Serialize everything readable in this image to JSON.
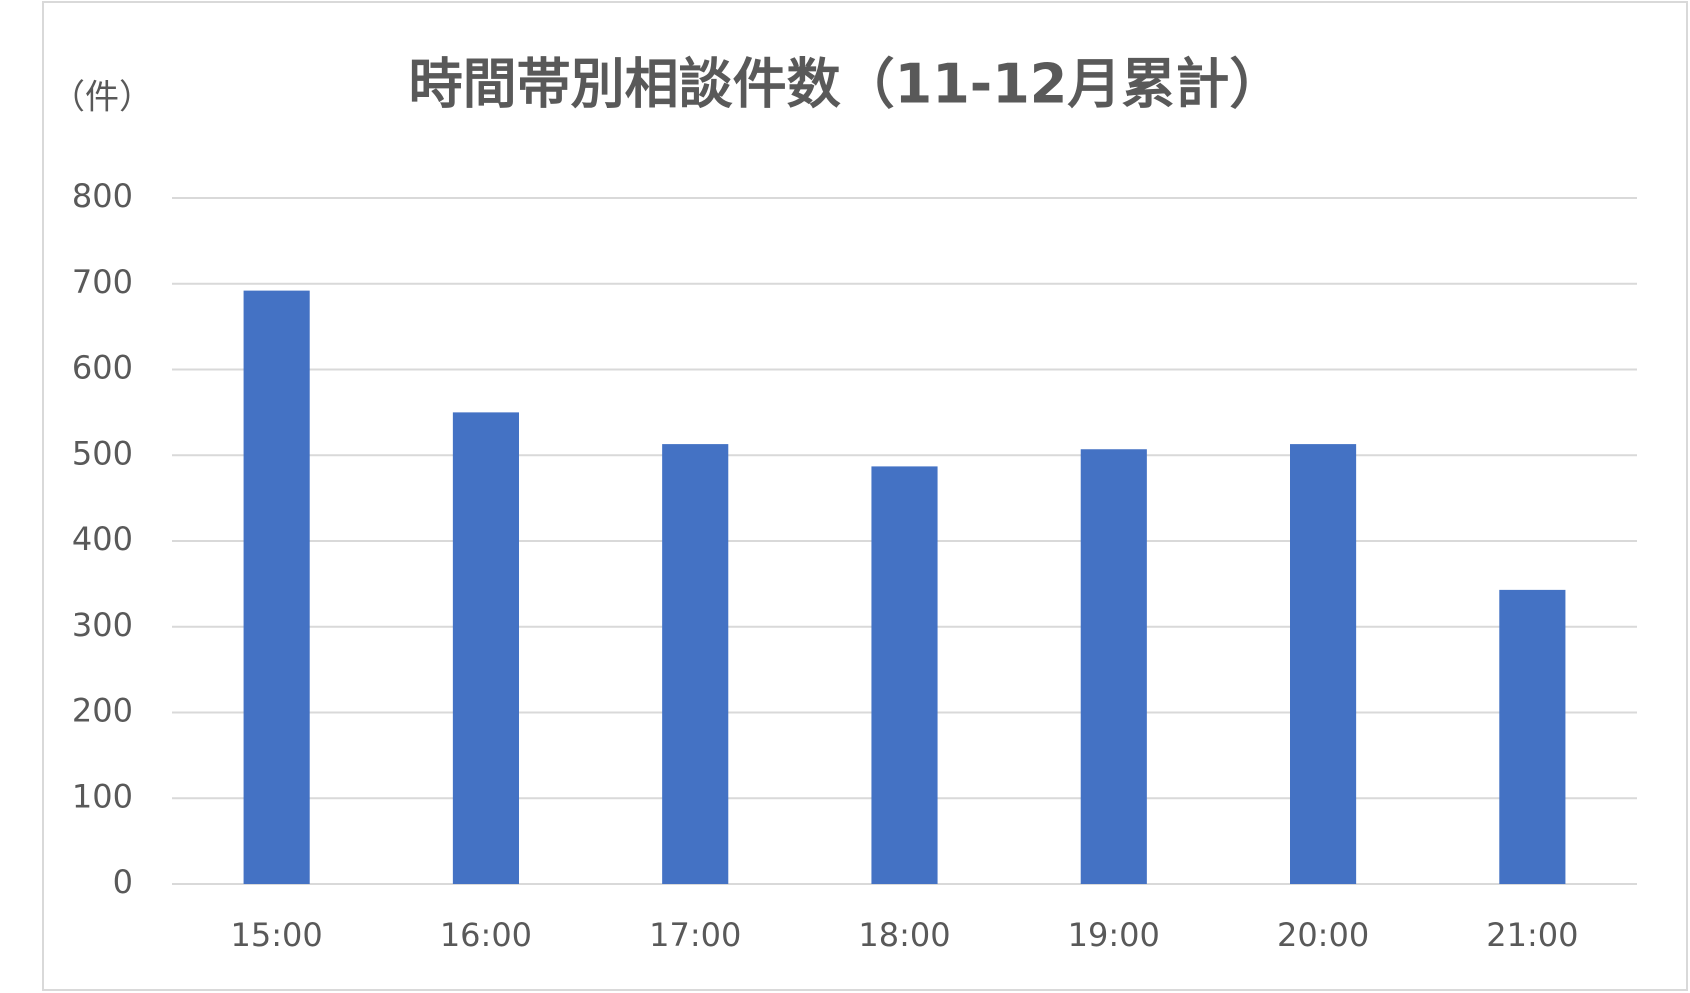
{
  "chart_data": {
    "type": "bar",
    "title": "時間帯別相談件数（11-12月累計）",
    "y_label": "（件）",
    "categories": [
      "15:00",
      "16:00",
      "17:00",
      "18:00",
      "19:00",
      "20:00",
      "21:00"
    ],
    "values": [
      692,
      550,
      513,
      487,
      507,
      513,
      343
    ],
    "color": "#4472c4",
    "ylim": [
      0,
      800
    ],
    "yticks": [
      0,
      100,
      200,
      300,
      400,
      500,
      600,
      700,
      800
    ],
    "grid": true
  }
}
